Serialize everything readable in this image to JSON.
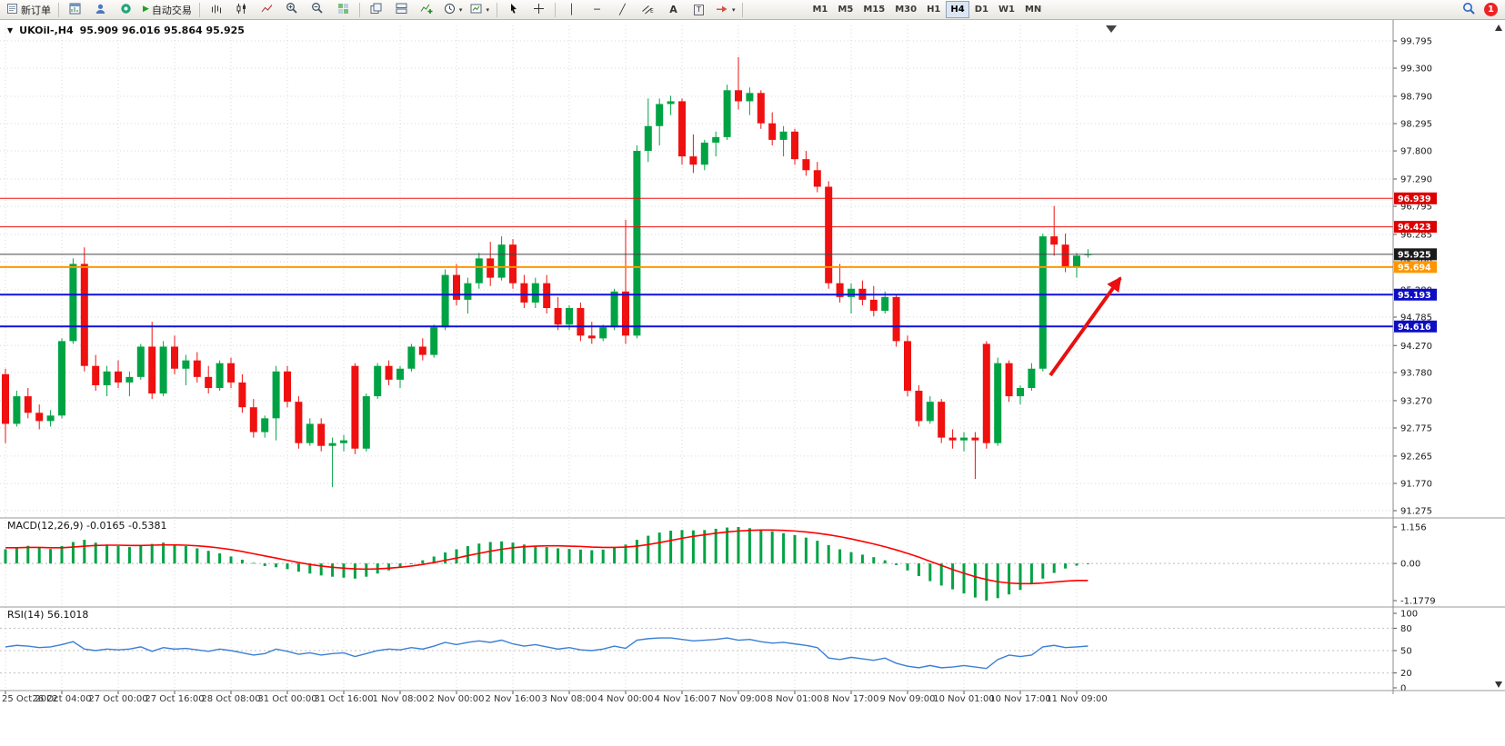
{
  "window": {
    "badge_count": "1"
  },
  "toolbar": {
    "new_order_label": "新订单",
    "autotrade_label": "自动交易",
    "timeframes": [
      "M1",
      "M5",
      "M15",
      "M30",
      "H1",
      "H4",
      "D1",
      "W1",
      "MN"
    ],
    "active_timeframe": "H4",
    "glyphs": {
      "play": "▶",
      "caret": "▾",
      "text_a": "A",
      "text_label": "T",
      "vline": "│",
      "hline": "─",
      "trendline": "╱",
      "dropdown": "▼"
    }
  },
  "chart": {
    "title_symbol": "UKOil-,H4",
    "title_ohlc": "95.909 96.016 95.864 95.925",
    "macd_label": "MACD(12,26,9) -0.0165 -0.5381",
    "rsi_label": "RSI(14) 56.1018"
  },
  "colors": {
    "up": "#00a344",
    "down": "#ef1010",
    "macd_histogram": "#00a344",
    "macd_signal": "#ff0000",
    "rsi_line": "#3a7fd5",
    "grid": "#d9d9d9",
    "arrow": "#e81010"
  },
  "chart_data": {
    "type": "candlestick",
    "symbol": "UKOil-",
    "timeframe": "H4",
    "current_ohlc": {
      "open": 95.909,
      "high": 96.016,
      "low": 95.864,
      "close": 95.925
    },
    "bid": 95.925,
    "price_axis": {
      "min": 91.275,
      "max": 99.795,
      "labels": [
        "99.795",
        "99.300",
        "98.790",
        "98.295",
        "97.800",
        "97.290",
        "96.795",
        "96.285",
        "95.790",
        "95.280",
        "94.785",
        "94.270",
        "93.780",
        "93.270",
        "92.775",
        "92.265",
        "91.770",
        "91.275"
      ]
    },
    "time_labels": [
      "25 Oct 2022",
      "26 Oct 04:00",
      "27 Oct 00:00",
      "27 Oct 16:00",
      "28 Oct 08:00",
      "31 Oct 00:00",
      "31 Oct 16:00",
      "1 Nov 08:00",
      "2 Nov 00:00",
      "2 Nov 16:00",
      "3 Nov 08:00",
      "4 Nov 00:00",
      "4 Nov 16:00",
      "7 Nov 09:00",
      "8 Nov 01:00",
      "8 Nov 17:00",
      "9 Nov 09:00",
      "10 Nov 01:00",
      "10 Nov 17:00",
      "11 Nov 09:00"
    ],
    "hlines": [
      {
        "name": "resistance-1",
        "price": 96.939,
        "label": "96.939",
        "color": "#ee1111",
        "width": 1,
        "tag_bg": "#dd0000"
      },
      {
        "name": "resistance-2",
        "price": 96.423,
        "label": "96.423",
        "color": "#ee1111",
        "width": 1,
        "tag_bg": "#dd0000"
      },
      {
        "name": "bid-line",
        "price": 95.925,
        "label": "95.925",
        "color": "#444444",
        "width": 1,
        "tag_bg": "#1a1a1a"
      },
      {
        "name": "orange-level",
        "price": 95.694,
        "label": "95.694",
        "color": "#ff9500",
        "width": 2,
        "tag_bg": "#ff9500"
      },
      {
        "name": "support-1",
        "price": 95.193,
        "label": "95.193",
        "color": "#1010d8",
        "width": 2,
        "tag_bg": "#0d0dc4"
      },
      {
        "name": "support-2",
        "price": 94.616,
        "label": "94.616",
        "color": "#1010d8",
        "width": 2,
        "tag_bg": "#0d0dc4"
      }
    ],
    "arrow": {
      "from": [
        1155,
        413
      ],
      "to": [
        1232,
        306
      ],
      "color": "#e81010"
    },
    "candles": [
      [
        93.75,
        93.85,
        92.5,
        92.85
      ],
      [
        92.85,
        93.45,
        92.8,
        93.35
      ],
      [
        93.35,
        93.5,
        92.95,
        93.05
      ],
      [
        93.05,
        93.2,
        92.75,
        92.9
      ],
      [
        92.9,
        93.1,
        92.8,
        93.0
      ],
      [
        93.0,
        94.4,
        92.95,
        94.35
      ],
      [
        94.35,
        95.85,
        94.3,
        95.75
      ],
      [
        95.75,
        96.05,
        93.8,
        93.9
      ],
      [
        93.9,
        94.1,
        93.45,
        93.55
      ],
      [
        93.55,
        93.9,
        93.35,
        93.8
      ],
      [
        93.8,
        94.0,
        93.5,
        93.6
      ],
      [
        93.6,
        93.8,
        93.35,
        93.7
      ],
      [
        93.7,
        94.3,
        93.65,
        94.25
      ],
      [
        94.25,
        94.7,
        93.3,
        93.4
      ],
      [
        93.4,
        94.35,
        93.35,
        94.25
      ],
      [
        94.25,
        94.45,
        93.75,
        93.85
      ],
      [
        93.85,
        94.1,
        93.55,
        94.0
      ],
      [
        94.0,
        94.15,
        93.6,
        93.7
      ],
      [
        93.7,
        93.9,
        93.4,
        93.5
      ],
      [
        93.5,
        94.0,
        93.45,
        93.95
      ],
      [
        93.95,
        94.05,
        93.5,
        93.6
      ],
      [
        93.6,
        93.75,
        93.05,
        93.15
      ],
      [
        93.15,
        93.3,
        92.6,
        92.7
      ],
      [
        92.7,
        93.0,
        92.6,
        92.95
      ],
      [
        92.95,
        93.9,
        92.55,
        93.8
      ],
      [
        93.8,
        93.9,
        93.15,
        93.25
      ],
      [
        93.25,
        93.35,
        92.4,
        92.5
      ],
      [
        92.5,
        92.95,
        92.45,
        92.85
      ],
      [
        92.85,
        92.95,
        92.35,
        92.45
      ],
      [
        92.45,
        92.6,
        91.7,
        92.5
      ],
      [
        92.5,
        92.65,
        92.35,
        92.55
      ],
      [
        93.9,
        93.95,
        92.3,
        92.4
      ],
      [
        92.4,
        93.4,
        92.35,
        93.35
      ],
      [
        93.35,
        93.95,
        93.3,
        93.9
      ],
      [
        93.9,
        94.0,
        93.55,
        93.65
      ],
      [
        93.65,
        93.9,
        93.5,
        93.85
      ],
      [
        93.85,
        94.3,
        93.8,
        94.25
      ],
      [
        94.25,
        94.4,
        94.0,
        94.1
      ],
      [
        94.1,
        94.65,
        94.05,
        94.6
      ],
      [
        94.6,
        95.65,
        94.55,
        95.55
      ],
      [
        95.55,
        95.75,
        95.0,
        95.1
      ],
      [
        95.1,
        95.5,
        94.85,
        95.4
      ],
      [
        95.4,
        95.95,
        95.3,
        95.85
      ],
      [
        95.85,
        96.15,
        95.35,
        95.5
      ],
      [
        95.5,
        96.25,
        95.45,
        96.1
      ],
      [
        96.1,
        96.2,
        95.3,
        95.4
      ],
      [
        95.4,
        95.55,
        94.95,
        95.05
      ],
      [
        95.05,
        95.5,
        94.95,
        95.4
      ],
      [
        95.4,
        95.55,
        94.85,
        94.95
      ],
      [
        94.95,
        95.15,
        94.55,
        94.65
      ],
      [
        94.65,
        95.0,
        94.55,
        94.95
      ],
      [
        94.95,
        95.05,
        94.35,
        94.45
      ],
      [
        94.45,
        94.7,
        94.3,
        94.4
      ],
      [
        94.4,
        94.65,
        94.35,
        94.6
      ],
      [
        94.6,
        95.3,
        94.55,
        95.25
      ],
      [
        95.25,
        96.55,
        94.3,
        94.45
      ],
      [
        94.45,
        97.9,
        94.4,
        97.8
      ],
      [
        97.8,
        98.75,
        97.6,
        98.25
      ],
      [
        98.25,
        98.75,
        97.9,
        98.65
      ],
      [
        98.65,
        98.8,
        98.45,
        98.7
      ],
      [
        98.7,
        98.75,
        97.55,
        97.7
      ],
      [
        97.7,
        98.1,
        97.4,
        97.55
      ],
      [
        97.55,
        98.0,
        97.45,
        97.95
      ],
      [
        97.95,
        98.15,
        97.7,
        98.05
      ],
      [
        98.05,
        99.0,
        98.0,
        98.9
      ],
      [
        98.9,
        99.5,
        98.55,
        98.7
      ],
      [
        98.7,
        98.95,
        98.45,
        98.85
      ],
      [
        98.85,
        98.9,
        98.2,
        98.3
      ],
      [
        98.3,
        98.5,
        97.9,
        98.0
      ],
      [
        98.0,
        98.25,
        97.7,
        98.15
      ],
      [
        98.15,
        98.2,
        97.55,
        97.65
      ],
      [
        97.65,
        97.8,
        97.35,
        97.45
      ],
      [
        97.45,
        97.6,
        97.05,
        97.15
      ],
      [
        97.15,
        97.25,
        95.3,
        95.4
      ],
      [
        95.4,
        95.75,
        95.05,
        95.15
      ],
      [
        95.15,
        95.4,
        94.85,
        95.3
      ],
      [
        95.3,
        95.45,
        95.0,
        95.1
      ],
      [
        95.1,
        95.35,
        94.8,
        94.9
      ],
      [
        94.9,
        95.25,
        94.85,
        95.15
      ],
      [
        95.15,
        95.2,
        94.25,
        94.35
      ],
      [
        94.35,
        94.45,
        93.35,
        93.45
      ],
      [
        93.45,
        93.55,
        92.8,
        92.9
      ],
      [
        92.9,
        93.35,
        92.85,
        93.25
      ],
      [
        93.25,
        93.3,
        92.5,
        92.6
      ],
      [
        92.6,
        92.75,
        92.4,
        92.55
      ],
      [
        92.55,
        92.7,
        92.35,
        92.6
      ],
      [
        92.6,
        92.7,
        91.85,
        92.55
      ],
      [
        94.3,
        94.35,
        92.4,
        92.5
      ],
      [
        92.5,
        94.05,
        92.45,
        93.95
      ],
      [
        93.95,
        94.0,
        93.25,
        93.35
      ],
      [
        93.35,
        93.55,
        93.2,
        93.5
      ],
      [
        93.5,
        93.95,
        93.45,
        93.85
      ],
      [
        93.85,
        96.3,
        93.8,
        96.25
      ],
      [
        96.25,
        96.8,
        95.9,
        96.1
      ],
      [
        96.1,
        96.3,
        95.6,
        95.7
      ],
      [
        95.7,
        95.95,
        95.5,
        95.9
      ],
      [
        95.909,
        96.016,
        95.864,
        95.925
      ]
    ],
    "macd": {
      "params": "12,26,9",
      "current_macd": -0.0165,
      "current_signal": -0.5381,
      "scale_labels": [
        "1.156",
        "0.00",
        "-1.1779"
      ],
      "scale_values": [
        1.156,
        0,
        -1.1779
      ],
      "histogram": [
        0.45,
        0.52,
        0.56,
        0.5,
        0.46,
        0.55,
        0.68,
        0.75,
        0.66,
        0.6,
        0.55,
        0.52,
        0.56,
        0.62,
        0.66,
        0.6,
        0.55,
        0.48,
        0.4,
        0.32,
        0.22,
        0.12,
        0.02,
        -0.08,
        -0.12,
        -0.18,
        -0.26,
        -0.32,
        -0.38,
        -0.42,
        -0.45,
        -0.48,
        -0.42,
        -0.32,
        -0.22,
        -0.12,
        -0.02,
        0.1,
        0.22,
        0.35,
        0.45,
        0.55,
        0.63,
        0.68,
        0.7,
        0.66,
        0.6,
        0.56,
        0.52,
        0.48,
        0.46,
        0.44,
        0.42,
        0.44,
        0.5,
        0.6,
        0.75,
        0.88,
        0.98,
        1.04,
        1.06,
        1.05,
        1.06,
        1.1,
        1.14,
        1.156,
        1.12,
        1.06,
        1.02,
        0.96,
        0.9,
        0.82,
        0.72,
        0.58,
        0.45,
        0.36,
        0.28,
        0.2,
        0.1,
        -0.05,
        -0.22,
        -0.4,
        -0.56,
        -0.7,
        -0.82,
        -0.95,
        -1.08,
        -1.1779,
        -1.1,
        -0.98,
        -0.84,
        -0.66,
        -0.48,
        -0.3,
        -0.16,
        -0.07,
        -0.0165
      ],
      "signal": [
        0.5,
        0.5,
        0.51,
        0.51,
        0.5,
        0.5,
        0.52,
        0.55,
        0.57,
        0.58,
        0.58,
        0.57,
        0.57,
        0.58,
        0.59,
        0.59,
        0.58,
        0.56,
        0.53,
        0.49,
        0.44,
        0.38,
        0.31,
        0.24,
        0.17,
        0.1,
        0.03,
        -0.03,
        -0.08,
        -0.12,
        -0.15,
        -0.17,
        -0.18,
        -0.17,
        -0.15,
        -0.12,
        -0.08,
        -0.03,
        0.03,
        0.1,
        0.17,
        0.25,
        0.32,
        0.39,
        0.45,
        0.5,
        0.53,
        0.55,
        0.56,
        0.56,
        0.55,
        0.54,
        0.52,
        0.51,
        0.51,
        0.52,
        0.55,
        0.6,
        0.66,
        0.73,
        0.8,
        0.86,
        0.91,
        0.96,
        1.0,
        1.03,
        1.05,
        1.06,
        1.06,
        1.05,
        1.03,
        1.0,
        0.96,
        0.91,
        0.85,
        0.78,
        0.7,
        0.62,
        0.53,
        0.43,
        0.32,
        0.2,
        0.07,
        -0.06,
        -0.19,
        -0.31,
        -0.42,
        -0.51,
        -0.58,
        -0.62,
        -0.64,
        -0.64,
        -0.62,
        -0.59,
        -0.56,
        -0.54,
        -0.5381
      ]
    },
    "rsi": {
      "period": 14,
      "current": 56.1018,
      "scale_labels": [
        "100",
        "80",
        "50",
        "20",
        "0"
      ],
      "levels": [
        80,
        50,
        20
      ],
      "values": [
        55,
        57,
        56,
        54,
        55,
        58,
        62,
        52,
        50,
        52,
        51,
        52,
        55,
        49,
        54,
        52,
        53,
        51,
        49,
        52,
        50,
        47,
        44,
        46,
        52,
        49,
        45,
        47,
        44,
        46,
        47,
        42,
        46,
        50,
        52,
        51,
        54,
        52,
        56,
        61,
        58,
        61,
        63,
        61,
        64,
        59,
        56,
        58,
        55,
        52,
        54,
        51,
        50,
        52,
        56,
        53,
        64,
        66,
        67,
        67,
        65,
        63,
        64,
        65,
        67,
        64,
        65,
        62,
        60,
        61,
        59,
        57,
        54,
        40,
        38,
        41,
        39,
        37,
        40,
        33,
        29,
        27,
        30,
        27,
        28,
        30,
        28,
        26,
        38,
        44,
        42,
        44,
        55,
        57,
        54,
        55,
        56.1
      ]
    }
  }
}
